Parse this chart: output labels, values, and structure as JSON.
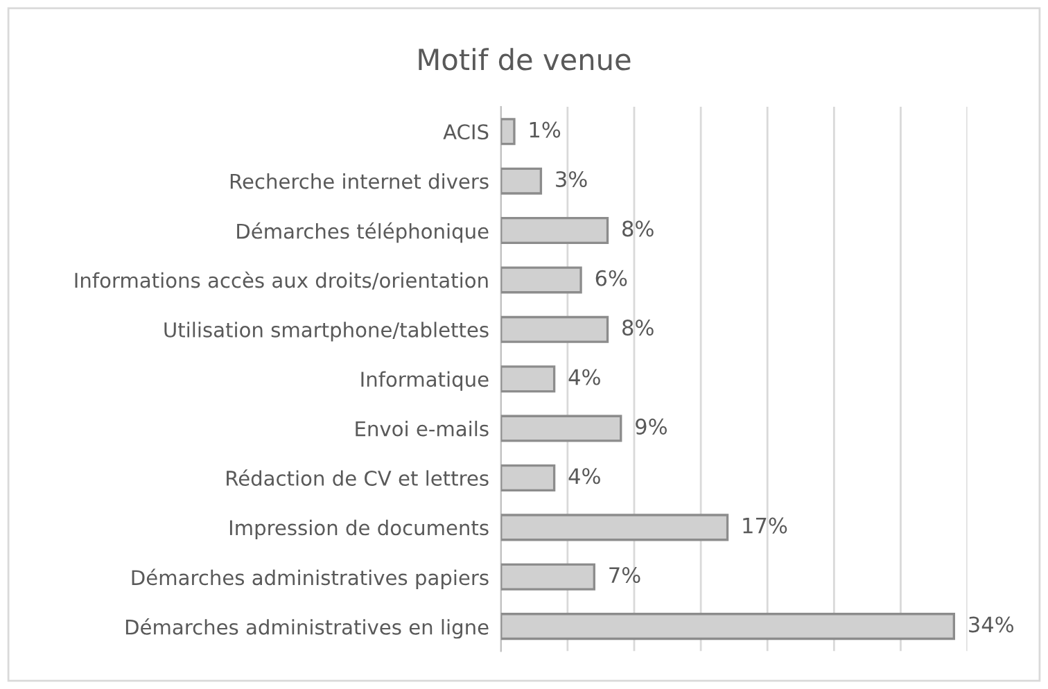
{
  "chart_data": {
    "type": "bar",
    "orientation": "horizontal",
    "title": "Motif de venue",
    "categories": [
      "ACIS",
      "Recherche internet divers",
      "Démarches téléphonique",
      "Informations accès aux droits/orientation",
      "Utilisation smartphone/tablettes",
      "Informatique",
      "Envoi e-mails",
      "Rédaction de CV et lettres",
      "Impression de documents",
      "Démarches administratives papiers",
      "Démarches administratives en ligne"
    ],
    "values": [
      1,
      3,
      8,
      6,
      8,
      4,
      9,
      4,
      17,
      7,
      34
    ],
    "value_labels": [
      "1%",
      "3%",
      "8%",
      "6%",
      "8%",
      "4%",
      "9%",
      "4%",
      "17%",
      "7%",
      "34%"
    ],
    "color": "#d0d0d0",
    "xlim": [
      0,
      35
    ],
    "xticks": [
      {
        "value": 0,
        "label": null
      },
      {
        "value": 5,
        "label": null
      },
      {
        "value": 10,
        "label": null
      },
      {
        "value": 15,
        "label": null
      },
      {
        "value": 20,
        "label": null
      },
      {
        "value": 25,
        "label": null
      },
      {
        "value": 30,
        "label": null
      },
      {
        "value": 35,
        "label": null
      }
    ],
    "tick_labels": "y",
    "grid": "x",
    "legend": false
  }
}
